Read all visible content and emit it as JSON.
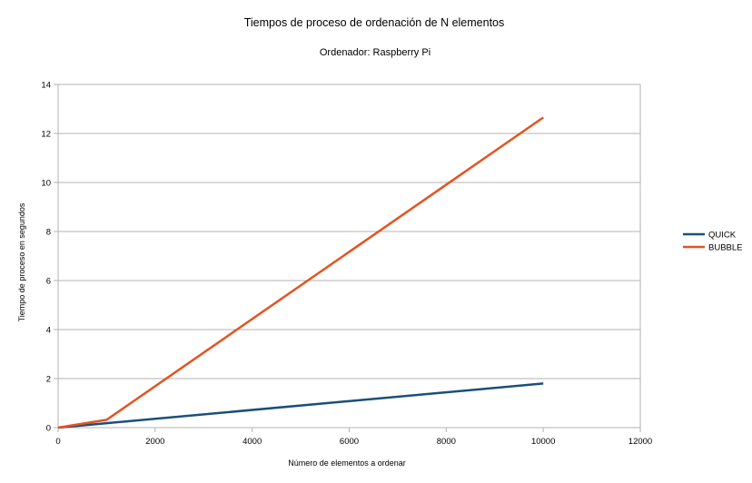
{
  "chart_data": {
    "type": "line",
    "title": "Tiempos de proceso de ordenación de N elementos",
    "subtitle": "Ordenador: Raspberry Pi",
    "xlabel": "Número de elementos a ordenar",
    "ylabel": "Tiempo de proceso en segundos",
    "xlim": [
      0,
      12000
    ],
    "ylim": [
      0,
      14
    ],
    "x_ticks": [
      0,
      2000,
      4000,
      6000,
      8000,
      10000,
      12000
    ],
    "y_ticks": [
      0,
      2,
      4,
      6,
      8,
      10,
      12,
      14
    ],
    "grid": "horizontal",
    "legend_position": "right",
    "series": [
      {
        "name": "QUICK",
        "color": "#1b4f7a",
        "points": [
          [
            0,
            0
          ],
          [
            1000,
            0.18
          ],
          [
            10000,
            1.8
          ]
        ]
      },
      {
        "name": "BUBBLE",
        "color": "#e4531f",
        "points": [
          [
            0,
            0
          ],
          [
            1000,
            0.32
          ],
          [
            10000,
            12.65
          ]
        ]
      }
    ]
  }
}
